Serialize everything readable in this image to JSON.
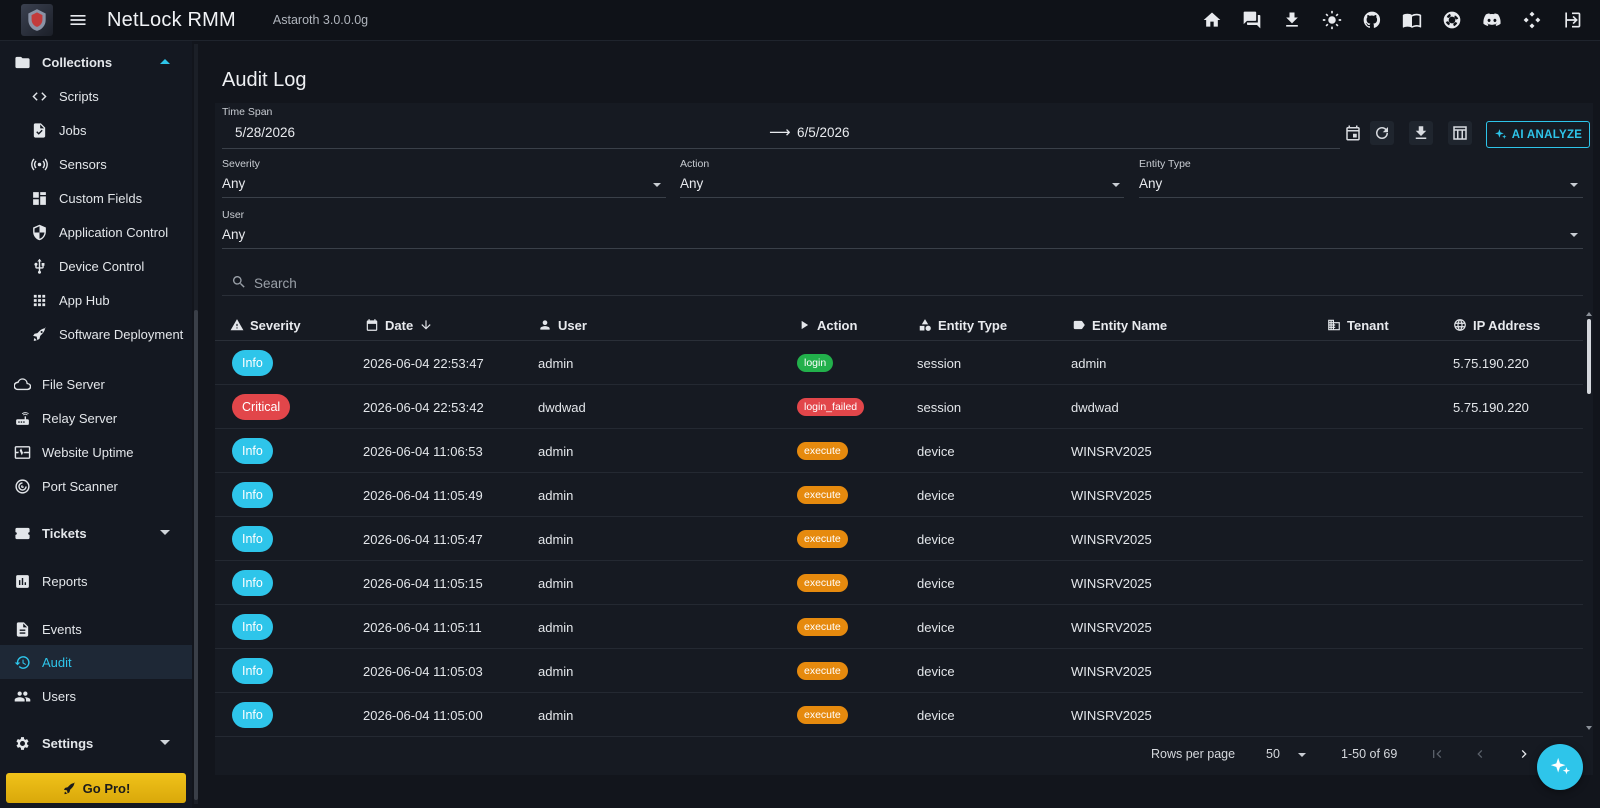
{
  "app": {
    "title": "NetLock RMM",
    "version": "Astaroth 3.0.0.0g"
  },
  "topbar_icons": [
    "home-icon",
    "chat-icon",
    "download-icon",
    "brightness-icon",
    "github-icon",
    "docs-icon",
    "support-icon",
    "discord-icon",
    "integrations-icon",
    "logout-icon"
  ],
  "sidebar": {
    "collections": {
      "label": "Collections",
      "items": [
        {
          "label": "Scripts",
          "icon": "code-icon"
        },
        {
          "label": "Jobs",
          "icon": "job-icon"
        },
        {
          "label": "Sensors",
          "icon": "sensor-icon"
        },
        {
          "label": "Custom Fields",
          "icon": "fields-icon"
        },
        {
          "label": "Application Control",
          "icon": "shield-icon"
        },
        {
          "label": "Device Control",
          "icon": "usb-icon"
        },
        {
          "label": "App Hub",
          "icon": "apps-icon"
        },
        {
          "label": "Software Deployment",
          "icon": "rocket-icon"
        }
      ]
    },
    "items": [
      {
        "label": "File Server",
        "icon": "cloud-icon"
      },
      {
        "label": "Relay Server",
        "icon": "router-icon"
      },
      {
        "label": "Website Uptime",
        "icon": "monitor-icon"
      },
      {
        "label": "Port Scanner",
        "icon": "radar-icon"
      }
    ],
    "tickets": "Tickets",
    "reports": "Reports",
    "events": "Events",
    "audit": "Audit",
    "users": "Users",
    "settings": "Settings",
    "gopro": "Go Pro!"
  },
  "page": {
    "title": "Audit Log"
  },
  "filters": {
    "timespan_label": "Time Span",
    "date_from": "5/28/2026",
    "date_to": "6/5/2026",
    "severity_label": "Severity",
    "severity_value": "Any",
    "action_label": "Action",
    "action_value": "Any",
    "entity_label": "Entity Type",
    "entity_value": "Any",
    "user_label": "User",
    "user_value": "Any",
    "ai_analyze": "AI ANALYZE",
    "arrow": "⟶"
  },
  "search": {
    "placeholder": "Search"
  },
  "table": {
    "headers": {
      "severity": "Severity",
      "date": "Date",
      "user": "User",
      "action": "Action",
      "entity_type": "Entity Type",
      "entity_name": "Entity Name",
      "tenant": "Tenant",
      "ip": "IP Address"
    },
    "rows": [
      {
        "severity": "Info",
        "date": "2026-06-04 22:53:47",
        "user": "admin",
        "action": "login",
        "entity_type": "session",
        "entity_name": "admin",
        "tenant": "",
        "ip": "5.75.190.220"
      },
      {
        "severity": "Critical",
        "date": "2026-06-04 22:53:42",
        "user": "dwdwad",
        "action": "login_failed",
        "entity_type": "session",
        "entity_name": "dwdwad",
        "tenant": "",
        "ip": "5.75.190.220"
      },
      {
        "severity": "Info",
        "date": "2026-06-04 11:06:53",
        "user": "admin",
        "action": "execute",
        "entity_type": "device",
        "entity_name": "WINSRV2025",
        "tenant": "",
        "ip": ""
      },
      {
        "severity": "Info",
        "date": "2026-06-04 11:05:49",
        "user": "admin",
        "action": "execute",
        "entity_type": "device",
        "entity_name": "WINSRV2025",
        "tenant": "",
        "ip": ""
      },
      {
        "severity": "Info",
        "date": "2026-06-04 11:05:47",
        "user": "admin",
        "action": "execute",
        "entity_type": "device",
        "entity_name": "WINSRV2025",
        "tenant": "",
        "ip": ""
      },
      {
        "severity": "Info",
        "date": "2026-06-04 11:05:15",
        "user": "admin",
        "action": "execute",
        "entity_type": "device",
        "entity_name": "WINSRV2025",
        "tenant": "",
        "ip": ""
      },
      {
        "severity": "Info",
        "date": "2026-06-04 11:05:11",
        "user": "admin",
        "action": "execute",
        "entity_type": "device",
        "entity_name": "WINSRV2025",
        "tenant": "",
        "ip": ""
      },
      {
        "severity": "Info",
        "date": "2026-06-04 11:05:03",
        "user": "admin",
        "action": "execute",
        "entity_type": "device",
        "entity_name": "WINSRV2025",
        "tenant": "",
        "ip": ""
      },
      {
        "severity": "Info",
        "date": "2026-06-04 11:05:00",
        "user": "admin",
        "action": "execute",
        "entity_type": "device",
        "entity_name": "WINSRV2025",
        "tenant": "",
        "ip": ""
      }
    ]
  },
  "pagination": {
    "rows_per_page_label": "Rows per page",
    "rows_per_page": "50",
    "range": "1-50 of 69"
  },
  "colors": {
    "accent": "#2ec5ea",
    "critical": "#e2464a",
    "success": "#22b04b",
    "warning": "#e68a0e",
    "gopro": "#f0c21a"
  }
}
